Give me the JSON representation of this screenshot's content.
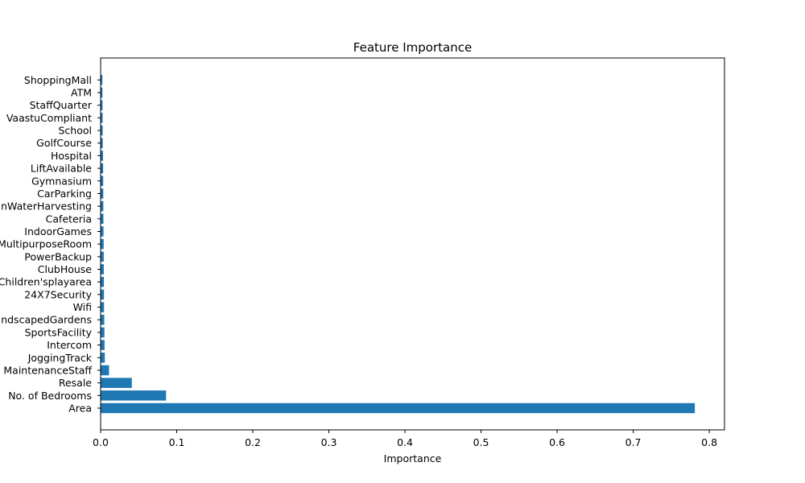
{
  "chart_data": {
    "type": "bar",
    "orientation": "horizontal",
    "title": "Feature Importance",
    "xlabel": "Importance",
    "ylabel": "",
    "xlim": [
      0,
      0.82
    ],
    "xticks": [
      0.0,
      0.1,
      0.2,
      0.3,
      0.4,
      0.5,
      0.6,
      0.7,
      0.8
    ],
    "xtick_labels": [
      "0.0",
      "0.1",
      "0.2",
      "0.3",
      "0.4",
      "0.5",
      "0.6",
      "0.7",
      "0.8"
    ],
    "grid": false,
    "bar_color": "#1f77b4",
    "categories": [
      "Area",
      "No. of Bedrooms",
      "Resale",
      "MaintenanceStaff",
      "JoggingTrack",
      "Intercom",
      "SportsFacility",
      "LandscapedGardens",
      "Wifi",
      "24X7Security",
      "Children'splayarea",
      "ClubHouse",
      "PowerBackup",
      "MultipurposeRoom",
      "IndoorGames",
      "Cafeteria",
      "RainWaterHarvesting",
      "CarParking",
      "Gymnasium",
      "LiftAvailable",
      "Hospital",
      "GolfCourse",
      "School",
      "VaastuCompliant",
      "StaffQuarter",
      "ATM",
      "ShoppingMall"
    ],
    "values": [
      0.781,
      0.086,
      0.041,
      0.011,
      0.0055,
      0.0052,
      0.005,
      0.0048,
      0.0045,
      0.0044,
      0.0043,
      0.0042,
      0.0041,
      0.004,
      0.0038,
      0.0037,
      0.0036,
      0.0035,
      0.0034,
      0.0033,
      0.0032,
      0.0028,
      0.0027,
      0.0026,
      0.0025,
      0.0024,
      0.0023
    ]
  }
}
